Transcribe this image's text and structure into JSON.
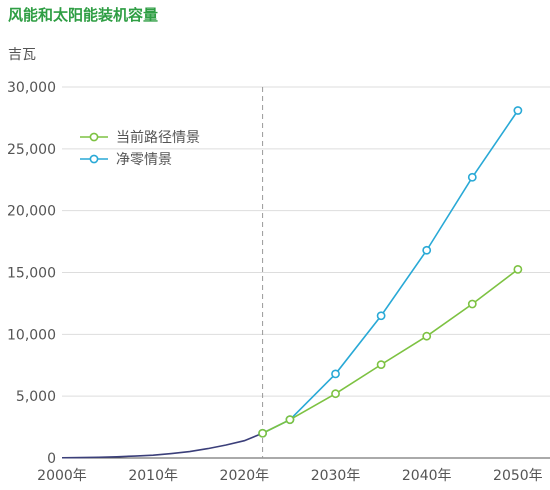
{
  "chart_data": {
    "type": "line",
    "title": "风能和太阳能装机容量",
    "y_unit": "吉瓦",
    "xlim": [
      2000,
      2051
    ],
    "ylim": [
      0,
      30000
    ],
    "x_ticks": [
      2000,
      2010,
      2020,
      2030,
      2040,
      2050
    ],
    "x_tick_labels": [
      "2000年",
      "2010年",
      "2020年",
      "2030年",
      "2040年",
      "2050年"
    ],
    "y_ticks": [
      0,
      5000,
      10000,
      15000,
      20000,
      25000,
      30000
    ],
    "y_tick_labels": [
      "0",
      "5,000",
      "10,000",
      "15,000",
      "20,000",
      "25,000",
      "30,000"
    ],
    "grid": "horizontal",
    "reference_line_x": 2022,
    "legend_position": "top-left",
    "historical": {
      "color": "#3b3f7a",
      "x": [
        2000,
        2002,
        2004,
        2006,
        2008,
        2010,
        2012,
        2014,
        2016,
        2018,
        2020,
        2022
      ],
      "y": [
        20,
        35,
        60,
        100,
        160,
        230,
        360,
        520,
        760,
        1050,
        1400,
        2000
      ]
    },
    "series": [
      {
        "name": "当前路径情景",
        "color": "#7dc242",
        "x": [
          2022,
          2025,
          2030,
          2035,
          2040,
          2045,
          2050
        ],
        "y": [
          2000,
          3100,
          5200,
          7550,
          9850,
          12450,
          15250
        ]
      },
      {
        "name": "净零情景",
        "color": "#29a9d6",
        "x": [
          2022,
          2025,
          2030,
          2035,
          2040,
          2045,
          2050
        ],
        "y": [
          2000,
          3100,
          6800,
          11500,
          16800,
          22700,
          28100
        ]
      }
    ]
  }
}
